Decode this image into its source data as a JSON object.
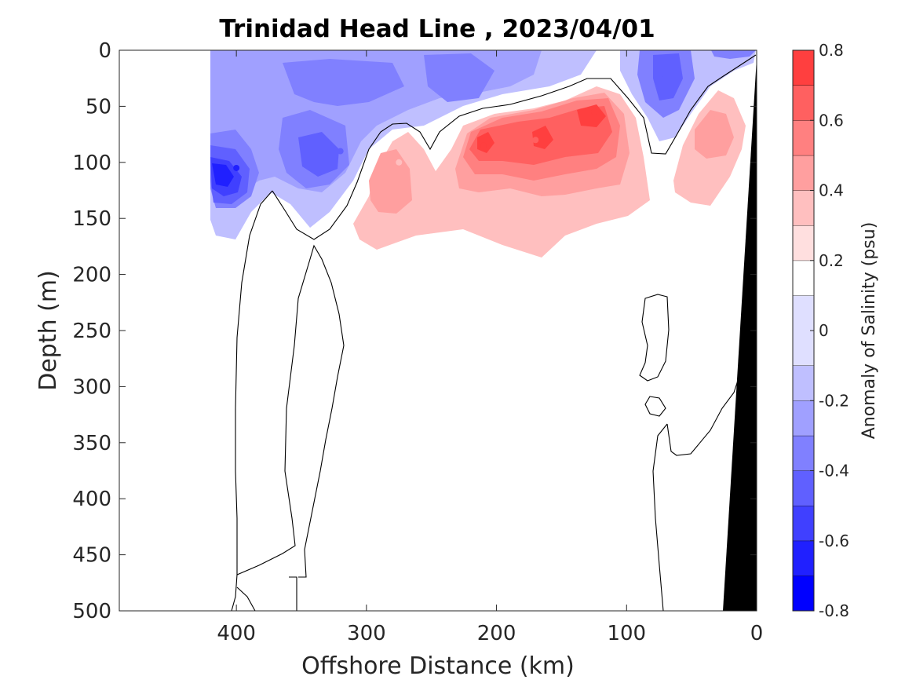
{
  "chart_data": {
    "type": "heatmap",
    "subtype": "filled-contour section",
    "title": "Trinidad Head Line , 2023/04/01",
    "xlabel": "Offshore Distance (km)",
    "ylabel": "Depth (m)",
    "xlim": [
      490,
      0
    ],
    "ylim": [
      0,
      500
    ],
    "x_reversed": true,
    "y_reversed": true,
    "xticks": [
      400,
      300,
      200,
      100,
      0
    ],
    "yticks": [
      0,
      50,
      100,
      150,
      200,
      250,
      300,
      350,
      400,
      450,
      500
    ],
    "colorbar": {
      "label": "Anomaly of Salinity (psu)",
      "range": [
        -0.8,
        0.8
      ],
      "ticks": [
        -0.8,
        -0.6,
        -0.4,
        -0.2,
        0,
        0.2,
        0.4,
        0.6,
        0.8
      ],
      "levels": [
        -0.8,
        -0.7,
        -0.6,
        -0.5,
        -0.4,
        -0.3,
        -0.2,
        -0.1,
        0.1,
        0.2,
        0.3,
        0.4,
        0.5,
        0.6,
        0.7,
        0.8
      ],
      "colors": [
        "#0000ff",
        "#2020ff",
        "#4040ff",
        "#6060ff",
        "#8080ff",
        "#a0a0ff",
        "#bfbfff",
        "#dfdfff",
        "#ffffff",
        "#ffdfdf",
        "#ffbfbf",
        "#ff9f9f",
        "#ff8080",
        "#ff6060",
        "#ff3f3f",
        "#ff2020",
        "#ff0000"
      ]
    },
    "features": [
      {
        "name": "fresh anomaly offshore core",
        "x": 400,
        "depth": 105,
        "value": -0.7
      },
      {
        "name": "fresh anomaly mid-section",
        "x": 320,
        "depth": 90,
        "value": -0.5
      },
      {
        "name": "fresh anomaly near-shore surface",
        "x": 70,
        "depth": 25,
        "value": -0.5
      },
      {
        "name": "salty anomaly core",
        "x": 125,
        "depth": 55,
        "value": 0.6
      },
      {
        "name": "salty anomaly core",
        "x": 210,
        "depth": 85,
        "value": 0.6
      },
      {
        "name": "salty anomaly core",
        "x": 170,
        "depth": 80,
        "value": 0.5
      },
      {
        "name": "salty anomaly near-shore",
        "x": 30,
        "depth": 60,
        "value": 0.3
      },
      {
        "name": "salty anomaly west lobe",
        "x": 275,
        "depth": 100,
        "value": 0.2
      }
    ],
    "bathymetry": {
      "color": "#000000",
      "x": [
        0,
        0,
        25,
        0
      ],
      "depth": [
        0,
        500,
        500,
        20
      ]
    }
  }
}
